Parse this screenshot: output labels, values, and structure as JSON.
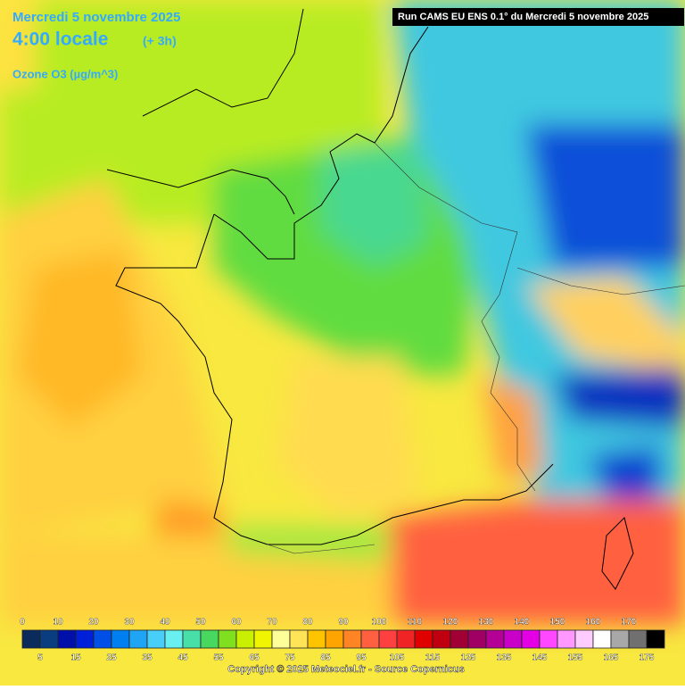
{
  "header": {
    "date": "Mercredi 5 novembre 2025",
    "time": "4:00 locale",
    "offset": "(+ 3h)",
    "variable": "Ozone O3 (µg/m^3)",
    "run": "Run CAMS EU ENS 0.1° du Mercredi 5 novembre 2025"
  },
  "legend": {
    "ticks": [
      0,
      5,
      10,
      15,
      20,
      25,
      30,
      35,
      40,
      45,
      50,
      55,
      60,
      65,
      70,
      75,
      80,
      85,
      90,
      95,
      100,
      105,
      110,
      115,
      120,
      125,
      130,
      135,
      140,
      145,
      150,
      155,
      160,
      165,
      170,
      175
    ],
    "colors": [
      "#0b2b5c",
      "#0a3c80",
      "#0010a8",
      "#0020d8",
      "#0050e8",
      "#0080f0",
      "#20a4f4",
      "#48cef8",
      "#68f0f0",
      "#48e0a8",
      "#48d860",
      "#80e020",
      "#c8f000",
      "#f0f400",
      "#ffff99",
      "#ffe458",
      "#ffc400",
      "#ffa400",
      "#ff8424",
      "#ff6040",
      "#ff4040",
      "#f02424",
      "#e00000",
      "#c00010",
      "#a00034",
      "#a00064",
      "#b40094",
      "#c800c8",
      "#e400e4",
      "#ff48ff",
      "#ff98ff",
      "#ffccff",
      "#ffffff",
      "#a8a8a8",
      "#707070",
      "#000000"
    ]
  },
  "footer": {
    "copyright": "Copyright © 2025 Meteociel.fr - Source Copernicus"
  }
}
